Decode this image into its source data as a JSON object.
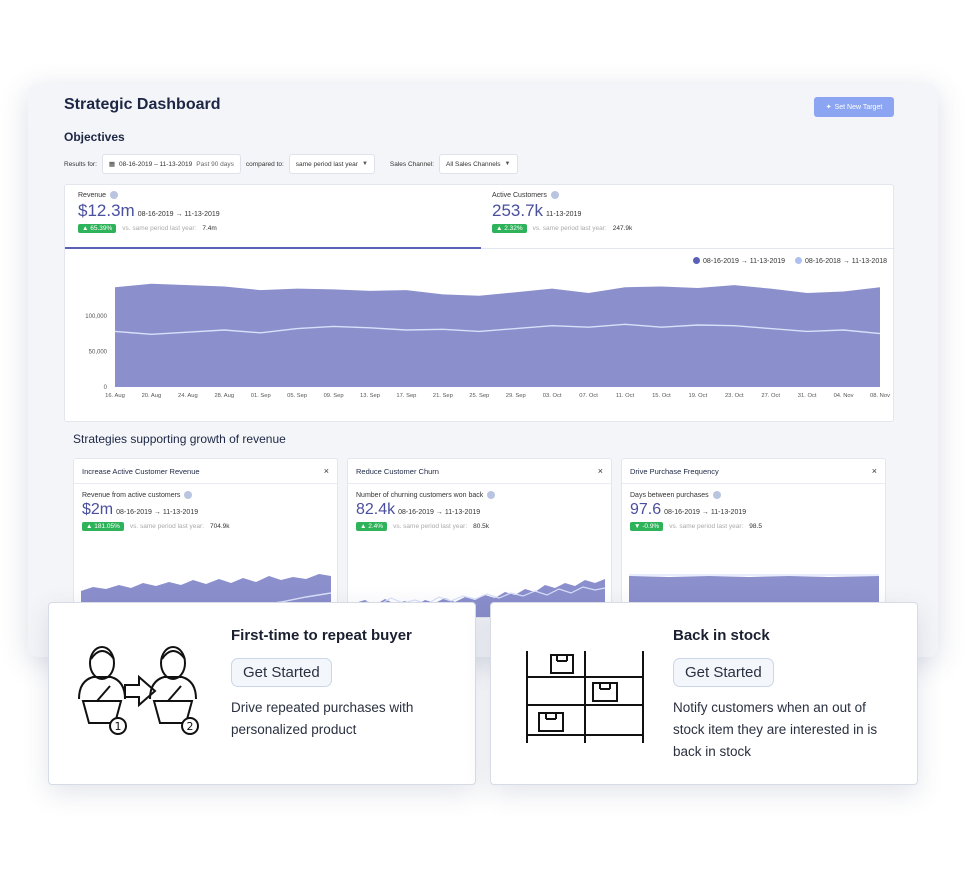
{
  "dashboard": {
    "title": "Strategic Dashboard",
    "set_target_label": "Set New Target",
    "objectives_label": "Objectives",
    "filters": {
      "results_for_label": "Results for:",
      "date_range": "08-16-2019 – 11-13-2019",
      "date_hint": "Past 90 days",
      "compared_to_label": "compared to:",
      "compared_value": "same period last year",
      "channel_label": "Sales Channel:",
      "channel_value": "All Sales Channels"
    },
    "kpis": [
      {
        "label": "Revenue",
        "value": "$12.3m",
        "range": "08-16-2019 → 11-13-2019",
        "change": "▲ 65.39%",
        "vs_label": "vs. same period last year:",
        "prev": "7.4m"
      },
      {
        "label": "Active Customers",
        "value": "253.7k",
        "range": "11-13-2019",
        "change": "▲ 2.32%",
        "vs_label": "vs. same period last year:",
        "prev": "247.9k"
      }
    ],
    "legend": [
      {
        "label": "08-16-2019 → 11-13-2019",
        "color": "#5a60b8"
      },
      {
        "label": "08-16-2018 → 11-13-2018",
        "color": "#aebff0"
      }
    ],
    "strategies_title": "Strategies supporting growth of revenue",
    "strategies": [
      {
        "title": "Increase Active Customer Revenue",
        "metric_label": "Revenue from active customers",
        "value": "$2m",
        "range": "08-16-2019 → 11-13-2019",
        "change": "▲ 181.05%",
        "vs_label": "vs. same period last year:",
        "prev": "704.9k"
      },
      {
        "title": "Reduce Customer Churn",
        "metric_label": "Number of churning customers won back",
        "value": "82.4k",
        "range": "08-16-2019 → 11-13-2019",
        "change": "▲ 2.4%",
        "vs_label": "vs. same period last year:",
        "prev": "80.5k"
      },
      {
        "title": "Drive Purchase Frequency",
        "metric_label": "Days between purchases",
        "value": "97.6",
        "range": "08-16-2019 → 11-13-2019",
        "change": "▼ -0.9%",
        "vs_label": "vs. same period last year:",
        "prev": "98.5"
      }
    ],
    "close_glyph": "×"
  },
  "chart_data": {
    "type": "area",
    "xlabel": "",
    "ylabel": "",
    "ylim": [
      0,
      160000
    ],
    "y_ticks": [
      0,
      50000,
      100000
    ],
    "y_tick_labels": [
      "0",
      "50,000",
      "100,000"
    ],
    "x_tick_labels": [
      "16. Aug",
      "20. Aug",
      "24. Aug",
      "28. Aug",
      "01. Sep",
      "05. Sep",
      "09. Sep",
      "13. Sep",
      "17. Sep",
      "21. Sep",
      "25. Sep",
      "29. Sep",
      "03. Oct",
      "07. Oct",
      "11. Oct",
      "15. Oct",
      "19. Oct",
      "23. Oct",
      "27. Oct",
      "31. Oct",
      "04. Nov",
      "08. Nov"
    ],
    "series": [
      {
        "name": "08-16-2019 → 11-13-2019",
        "values": [
          140000,
          145000,
          143000,
          141000,
          136000,
          138000,
          137000,
          135000,
          136000,
          130000,
          128000,
          133000,
          138000,
          132000,
          140000,
          141000,
          139000,
          143000,
          138000,
          132000,
          134000,
          140000
        ]
      },
      {
        "name": "08-16-2018 → 11-13-2018",
        "values": [
          78000,
          74000,
          77000,
          80000,
          76000,
          82000,
          85000,
          83000,
          80000,
          81000,
          78000,
          82000,
          86000,
          84000,
          88000,
          84000,
          87000,
          86000,
          82000,
          78000,
          80000,
          75000
        ]
      }
    ]
  },
  "promo_cards": [
    {
      "title": "First-time to repeat buyer",
      "button": "Get Started",
      "description": "Drive repeated purchases with personalized product",
      "icon": "buyer-repeat-icon"
    },
    {
      "title": "Back in stock",
      "button": "Get Started",
      "description": "Notify customers when an out of stock item they are interested in is back in stock",
      "icon": "stock-shelf-icon"
    }
  ]
}
